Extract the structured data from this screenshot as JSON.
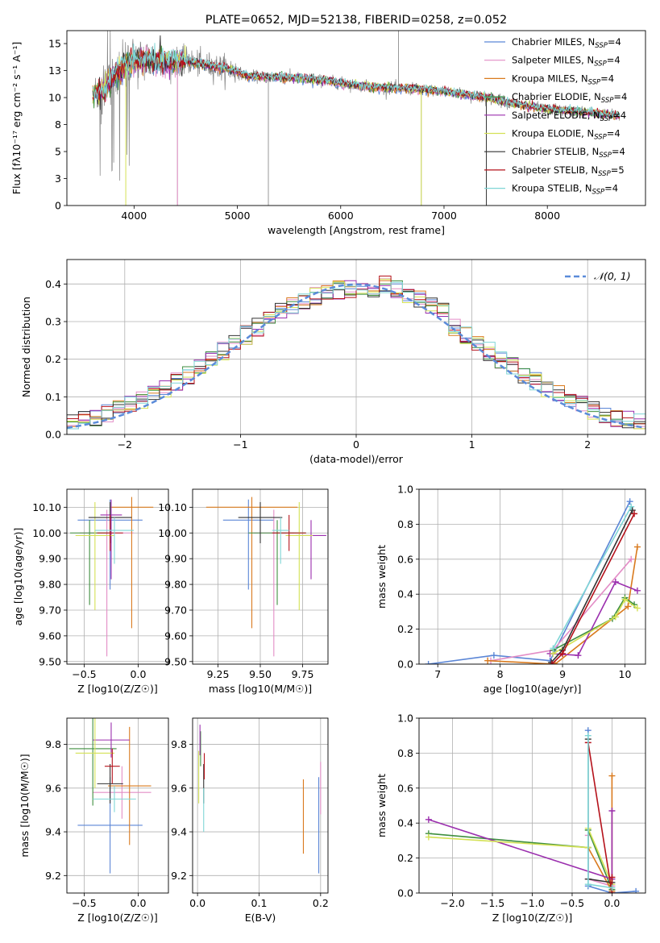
{
  "chart_data": [
    {
      "id": "spectrum",
      "type": "line",
      "title": "PLATE=0652, MJD=52138, FIBERID=0258, z=0.052",
      "xlabel": "wavelength [Angstrom, rest frame]",
      "ylabel": "Flux [fλ10⁻¹⁷ erg cm⁻² s⁻¹ A⁻¹]",
      "xlim": [
        3350,
        8950
      ],
      "ylim": [
        0,
        16.2
      ],
      "xticks": [
        4000,
        5000,
        6000,
        7000,
        8000
      ],
      "yticks": [
        0.0,
        2.5,
        5.0,
        7.5,
        10.0,
        12.5,
        15.0
      ],
      "legend_position": "top-right",
      "series": [
        {
          "name": "Chabrier MILES, N_SSP=4",
          "color": "#5b86d6",
          "xrange": [
            3600,
            7400
          ]
        },
        {
          "name": "Salpeter MILES, N_SSP=4",
          "color": "#e38dc6",
          "xrange": [
            3600,
            7400
          ]
        },
        {
          "name": "Kroupa MILES, N_SSP=4",
          "color": "#d97a1e",
          "xrange": [
            3600,
            8700
          ]
        },
        {
          "name": "Chabrier ELODIE, N_SSP=4",
          "color": "#3f8f3f",
          "xrange": [
            3600,
            8700
          ]
        },
        {
          "name": "Salpeter ELODIE, N_SSP=4",
          "color": "#9b2fae",
          "xrange": [
            3600,
            8700
          ]
        },
        {
          "name": "Kroupa ELODIE, N_SSP=4",
          "color": "#d4e155",
          "xrange": [
            3600,
            8700
          ]
        },
        {
          "name": "Chabrier STELIB, N_SSP=4",
          "color": "#333333",
          "xrange": [
            3600,
            8700
          ]
        },
        {
          "name": "Salpeter STELIB, N_SSP=5",
          "color": "#b5121b",
          "xrange": [
            3600,
            8700
          ]
        },
        {
          "name": "Kroupa STELIB, N_SSP=4",
          "color": "#7fd6d6",
          "xrange": [
            3600,
            8700
          ]
        }
      ],
      "observed_color": "#808080",
      "continuum_points": [
        [
          3620,
          10.2
        ],
        [
          3700,
          10.6
        ],
        [
          3800,
          12.0
        ],
        [
          3950,
          13.2
        ],
        [
          4100,
          13.5
        ],
        [
          4300,
          13.3
        ],
        [
          4500,
          13.4
        ],
        [
          4700,
          13.0
        ],
        [
          4900,
          12.7
        ],
        [
          5100,
          12.0
        ],
        [
          5300,
          11.9
        ],
        [
          5600,
          11.8
        ],
        [
          5900,
          11.5
        ],
        [
          6100,
          11.2
        ],
        [
          6400,
          10.9
        ],
        [
          6700,
          10.8
        ],
        [
          7000,
          10.6
        ],
        [
          7200,
          10.3
        ],
        [
          7400,
          10.0
        ],
        [
          7600,
          9.6
        ],
        [
          7800,
          9.2
        ],
        [
          8000,
          8.9
        ],
        [
          8200,
          8.8
        ],
        [
          8400,
          8.6
        ],
        [
          8700,
          8.3
        ]
      ]
    },
    {
      "id": "residual_histogram",
      "type": "bar",
      "xlabel": "(data-model)/error",
      "ylabel": "Normed distribution",
      "xlim": [
        -2.5,
        2.5
      ],
      "ylim": [
        0,
        0.465
      ],
      "xticks": [
        -2,
        -1,
        0,
        1,
        2
      ],
      "yticks": [
        0.0,
        0.1,
        0.2,
        0.3,
        0.4
      ],
      "legend_position": "top-right",
      "reference_curve": {
        "name": "𝒩(0, 1)",
        "color": "#5b8bd9"
      },
      "bin_width": 0.1
    },
    {
      "id": "age_vs_Z",
      "type": "scatter",
      "xlabel": "Z [log10(Z/Z☉)]",
      "ylabel": "age  [log10(age/yr)]",
      "xlim": [
        -0.66,
        0.28
      ],
      "ylim": [
        9.49,
        10.17
      ],
      "xticks": [
        -0.5,
        0.0
      ],
      "yticks": [
        9.5,
        9.6,
        9.7,
        9.8,
        9.9,
        10.0,
        10.1
      ],
      "points": [
        {
          "series": 0,
          "x": -0.26,
          "y": 10.05,
          "xerr": 0.3,
          "yerr": [
            0.27,
            0.08
          ]
        },
        {
          "series": 1,
          "x": -0.29,
          "y": 10.0,
          "xerr": 0.25,
          "yerr": [
            0.48,
            0.09
          ]
        },
        {
          "series": 2,
          "x": -0.06,
          "y": 10.1,
          "xerr": 0.2,
          "yerr": [
            0.47,
            0.04
          ]
        },
        {
          "series": 3,
          "x": -0.45,
          "y": 10.0,
          "xerr": 0.18,
          "yerr": [
            0.28,
            0.05
          ]
        },
        {
          "series": 4,
          "x": -0.25,
          "y": 10.07,
          "xerr": 0.1,
          "yerr": [
            0.25,
            0.06
          ]
        },
        {
          "series": 5,
          "x": -0.4,
          "y": 9.99,
          "xerr": 0.18,
          "yerr": [
            0.29,
            0.13
          ]
        },
        {
          "series": 6,
          "x": -0.26,
          "y": 10.06,
          "xerr": 0.2,
          "yerr": [
            0.1,
            0.06
          ]
        },
        {
          "series": 7,
          "x": -0.26,
          "y": 10.0,
          "xerr": 0.12,
          "yerr": [
            0.07,
            0.07
          ]
        },
        {
          "series": 8,
          "x": -0.22,
          "y": 10.01,
          "xerr": 0.18,
          "yerr": [
            0.13,
            0.05
          ]
        }
      ]
    },
    {
      "id": "age_vs_mass",
      "type": "scatter",
      "xlabel": "mass [log10(M/M☉)]",
      "ylabel": "",
      "xlim": [
        9.1,
        9.9
      ],
      "ylim": [
        9.49,
        10.17
      ],
      "xticks": [
        9.25,
        9.5,
        9.75
      ],
      "yticks": [
        9.5,
        9.6,
        9.7,
        9.8,
        9.9,
        10.0,
        10.1
      ],
      "points": [
        {
          "series": 0,
          "x": 9.43,
          "y": 10.05,
          "xerr": 0.15,
          "yerr": [
            0.27,
            0.08
          ]
        },
        {
          "series": 1,
          "x": 9.58,
          "y": 10.0,
          "xerr": 0.12,
          "yerr": [
            0.48,
            0.09
          ]
        },
        {
          "series": 2,
          "x": 9.45,
          "y": 10.1,
          "xerr": 0.27,
          "yerr": [
            0.47,
            0.04
          ]
        },
        {
          "series": 3,
          "x": 9.6,
          "y": 10.0,
          "xerr": 0.17,
          "yerr": [
            0.28,
            0.05
          ]
        },
        {
          "series": 4,
          "x": 9.8,
          "y": 9.99,
          "xerr": 0.09,
          "yerr": [
            0.17,
            0.06
          ]
        },
        {
          "series": 5,
          "x": 9.73,
          "y": 9.99,
          "xerr": 0.08,
          "yerr": [
            0.29,
            0.13
          ]
        },
        {
          "series": 6,
          "x": 9.5,
          "y": 10.06,
          "xerr": 0.13,
          "yerr": [
            0.1,
            0.06
          ]
        },
        {
          "series": 7,
          "x": 9.67,
          "y": 10.0,
          "xerr": 0.1,
          "yerr": [
            0.07,
            0.07
          ]
        },
        {
          "series": 8,
          "x": 9.62,
          "y": 10.01,
          "xerr": 0.05,
          "yerr": [
            0.13,
            0.05
          ]
        }
      ]
    },
    {
      "id": "weight_vs_age",
      "type": "line",
      "xlabel": "age  [log10(age/yr)]",
      "ylabel": "mass weight",
      "xlim": [
        6.7,
        10.33
      ],
      "ylim": [
        0,
        1.0
      ],
      "xticks": [
        7,
        8,
        9,
        10
      ],
      "yticks": [
        0.0,
        0.2,
        0.4,
        0.6,
        0.8,
        1.0
      ],
      "series": [
        {
          "series": 0,
          "x": [
            6.85,
            7.9,
            8.8,
            10.08
          ],
          "y": [
            0.0,
            0.05,
            0.02,
            0.93
          ]
        },
        {
          "series": 1,
          "x": [
            7.85,
            8.85,
            10.1
          ],
          "y": [
            0.02,
            0.08,
            0.6
          ]
        },
        {
          "series": 2,
          "x": [
            7.8,
            8.88,
            10.05,
            10.2
          ],
          "y": [
            0.02,
            0.0,
            0.33,
            0.67
          ]
        },
        {
          "series": 3,
          "x": [
            8.85,
            9.8,
            10.0,
            10.15
          ],
          "y": [
            0.08,
            0.26,
            0.38,
            0.34
          ]
        },
        {
          "series": 4,
          "x": [
            8.8,
            9.25,
            9.85,
            10.2
          ],
          "y": [
            0.06,
            0.05,
            0.47,
            0.42
          ]
        },
        {
          "series": 5,
          "x": [
            8.85,
            9.85,
            10.0,
            10.2
          ],
          "y": [
            0.06,
            0.27,
            0.37,
            0.32
          ]
        },
        {
          "series": 6,
          "x": [
            8.82,
            9.0,
            10.12
          ],
          "y": [
            0.01,
            0.08,
            0.88
          ]
        },
        {
          "series": 7,
          "x": [
            8.83,
            9.0,
            10.15
          ],
          "y": [
            0.0,
            0.06,
            0.86
          ]
        },
        {
          "series": 8,
          "x": [
            8.85,
            10.1
          ],
          "y": [
            0.09,
            0.9
          ]
        }
      ]
    },
    {
      "id": "mass_vs_Z",
      "type": "scatter",
      "xlabel": "Z [log10(Z/Z☉)]",
      "ylabel": "mass [log10(M/M☉)]",
      "xlim": [
        -0.66,
        0.28
      ],
      "ylim": [
        9.12,
        9.92
      ],
      "xticks": [
        -0.5,
        0.0
      ],
      "yticks": [
        9.2,
        9.4,
        9.6,
        9.8
      ],
      "points": [
        {
          "series": 0,
          "x": -0.26,
          "y": 9.43,
          "xerr": 0.3,
          "yerr": 0.22
        },
        {
          "series": 1,
          "x": -0.15,
          "y": 9.58,
          "xerr": 0.27,
          "yerr": 0.12
        },
        {
          "series": 2,
          "x": -0.08,
          "y": 9.61,
          "xerr": 0.2,
          "yerr": 0.27
        },
        {
          "series": 3,
          "x": -0.42,
          "y": 9.78,
          "xerr": 0.22,
          "yerr": 0.26
        },
        {
          "series": 4,
          "x": -0.25,
          "y": 9.82,
          "xerr": 0.17,
          "yerr": 0.08
        },
        {
          "series": 5,
          "x": -0.4,
          "y": 9.76,
          "xerr": 0.18,
          "yerr": 0.16
        },
        {
          "series": 6,
          "x": -0.26,
          "y": 9.62,
          "xerr": 0.12,
          "yerr": 0.09
        },
        {
          "series": 7,
          "x": -0.24,
          "y": 9.7,
          "xerr": 0.07,
          "yerr": 0.08
        },
        {
          "series": 8,
          "x": -0.22,
          "y": 9.55,
          "xerr": 0.2,
          "yerr": 0.06
        }
      ]
    },
    {
      "id": "mass_vs_ebv",
      "type": "scatter",
      "xlabel": "E(B-V)",
      "ylabel": "",
      "xlim": [
        -0.008,
        0.212
      ],
      "ylim": [
        9.12,
        9.92
      ],
      "xticks": [
        0.0,
        0.1,
        0.2
      ],
      "yticks": [
        9.2,
        9.4,
        9.6,
        9.8
      ],
      "points": [
        {
          "series": 0,
          "x": 0.197,
          "y": 9.43,
          "yerr": 0.22
        },
        {
          "series": 1,
          "x": 0.2,
          "y": 9.6,
          "yerr": 0.12
        },
        {
          "series": 2,
          "x": 0.172,
          "y": 9.47,
          "yerr": 0.17
        },
        {
          "series": 3,
          "x": 0.005,
          "y": 9.78,
          "yerr": 0.08
        },
        {
          "series": 4,
          "x": 0.004,
          "y": 9.82,
          "yerr": 0.07
        },
        {
          "series": 5,
          "x": 0.002,
          "y": 9.65,
          "yerr": 0.12
        },
        {
          "series": 6,
          "x": 0.01,
          "y": 9.62,
          "yerr": 0.09
        },
        {
          "series": 7,
          "x": 0.011,
          "y": 9.7,
          "yerr": 0.06
        },
        {
          "series": 8,
          "x": 0.01,
          "y": 9.5,
          "yerr": 0.1
        }
      ]
    },
    {
      "id": "weight_vs_Z",
      "type": "line",
      "xlabel": "Z [log10(Z/Z☉)]",
      "ylabel": "mass weight",
      "xlim": [
        -2.42,
        0.42
      ],
      "ylim": [
        0,
        1.0
      ],
      "xticks": [
        -2.0,
        -1.5,
        -1.0,
        -0.5,
        0.0
      ],
      "yticks": [
        0.0,
        0.2,
        0.4,
        0.6,
        0.8,
        1.0
      ],
      "series": [
        {
          "series": 0,
          "x": [
            0.3,
            0.0,
            -0.3,
            -0.3
          ],
          "y": [
            0.01,
            0.0,
            0.04,
            0.93
          ]
        },
        {
          "series": 1,
          "x": [
            -0.3,
            -0.3,
            0.0
          ],
          "y": [
            0.33,
            0.08,
            0.04
          ]
        },
        {
          "series": 2,
          "x": [
            -0.3,
            0.0,
            0.0
          ],
          "y": [
            0.26,
            0.01,
            0.67
          ]
        },
        {
          "series": 3,
          "x": [
            -2.3,
            -0.3,
            -0.3,
            0.0
          ],
          "y": [
            0.34,
            0.26,
            0.36,
            0.02
          ]
        },
        {
          "series": 4,
          "x": [
            -2.3,
            0.0,
            0.0
          ],
          "y": [
            0.42,
            0.08,
            0.47
          ]
        },
        {
          "series": 5,
          "x": [
            -2.3,
            -0.3,
            -0.3,
            0.0
          ],
          "y": [
            0.32,
            0.26,
            0.37,
            0.05
          ]
        },
        {
          "series": 6,
          "x": [
            -0.3,
            -0.3,
            0.0
          ],
          "y": [
            0.88,
            0.08,
            0.06
          ]
        },
        {
          "series": 7,
          "x": [
            -0.3,
            0.0,
            0.0
          ],
          "y": [
            0.86,
            0.0,
            0.09
          ]
        },
        {
          "series": 8,
          "x": [
            -0.3,
            -0.3,
            0.0
          ],
          "y": [
            0.9,
            0.05,
            0.03
          ]
        }
      ]
    }
  ]
}
